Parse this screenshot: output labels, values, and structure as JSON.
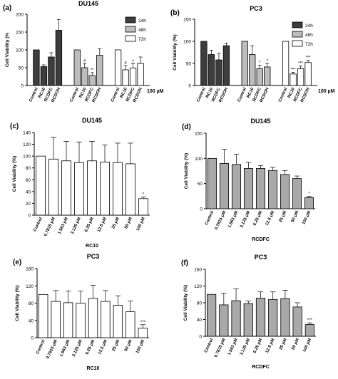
{
  "colors": {
    "bar_24h": "#3d3d3d",
    "bar_48h": "#bdbdbd",
    "bar_72h": "#ffffff",
    "bar_gray": "#a9a9a9",
    "bar_white": "#ffffff",
    "axis": "#000000"
  },
  "chart_data": [
    {
      "panel": "(a)",
      "title": "DU145",
      "type": "bar",
      "ylabel": "Cell Viability (%",
      "ylim": [
        0,
        200
      ],
      "yticks": [
        0,
        50,
        100,
        150,
        200
      ],
      "unit_note": "100 µM",
      "legend": [
        "24h",
        "48h",
        "72h"
      ],
      "legend_position": "top-right",
      "groups": [
        {
          "name": "24h",
          "categories": [
            "Control",
            "RC10",
            "RCDFC",
            "RCDOH"
          ],
          "values": [
            100,
            53,
            80,
            155
          ],
          "errors": [
            0,
            5,
            12,
            30
          ],
          "sig": [
            "",
            "",
            "",
            ""
          ]
        },
        {
          "name": "48h",
          "categories": [
            "Control",
            "RC10",
            "RCDFC",
            "RCDOH"
          ],
          "values": [
            100,
            50,
            28,
            85
          ],
          "errors": [
            0,
            12,
            8,
            18
          ],
          "sig": [
            "",
            "#",
            "**",
            ""
          ]
        },
        {
          "name": "72h",
          "categories": [
            "Control",
            "RC10",
            "RCDFC",
            "RCDOH"
          ],
          "values": [
            100,
            44,
            49,
            62
          ],
          "errors": [
            0,
            12,
            12,
            18
          ],
          "sig": [
            "",
            "#",
            "†",
            ""
          ]
        }
      ]
    },
    {
      "panel": "(b)",
      "title": "PC3",
      "type": "bar",
      "ylabel": "Cell Viability (%)",
      "ylim": [
        0,
        150
      ],
      "yticks": [
        0,
        50,
        100,
        150
      ],
      "unit_note": "100 µM",
      "legend": [
        "24h",
        "48h",
        "72h"
      ],
      "legend_position": "top-right",
      "groups": [
        {
          "name": "24h",
          "categories": [
            "Control",
            "RC10",
            "RCDFC",
            "RCDOH"
          ],
          "values": [
            100,
            70,
            58,
            90
          ],
          "errors": [
            0,
            10,
            15,
            6
          ],
          "sig": [
            "",
            "",
            "",
            ""
          ]
        },
        {
          "name": "48h",
          "categories": [
            "Control",
            "RC10",
            "RCDFC",
            "RCDOH"
          ],
          "values": [
            100,
            70,
            38,
            42
          ],
          "errors": [
            0,
            20,
            8,
            8
          ],
          "sig": [
            "",
            "",
            "*",
            "*"
          ]
        },
        {
          "name": "72h",
          "categories": [
            "Control",
            "RC10",
            "RCDFC",
            "RCDOH"
          ],
          "values": [
            100,
            26,
            38,
            52
          ],
          "errors": [
            0,
            4,
            6,
            5
          ],
          "sig": [
            "",
            "***",
            "***",
            "***"
          ]
        }
      ]
    },
    {
      "panel": "(c)",
      "title": "DU145",
      "type": "bar",
      "xlabel": "RC10",
      "ylabel": "Cell Viability (%)",
      "ylim": [
        0,
        140
      ],
      "yticks": [
        0,
        20,
        40,
        60,
        80,
        100,
        120,
        140
      ],
      "fill": "white",
      "categories": [
        "Control",
        "0.7815 μM",
        "1.563 μM",
        "3.125 μM",
        "6.25 μM",
        "12.5 μM",
        "25 μM",
        "50 μM",
        "100 μM"
      ],
      "values": [
        100,
        95,
        92,
        89,
        92,
        90,
        89,
        87,
        28
      ],
      "errors": [
        0,
        37,
        33,
        35,
        33,
        29,
        33,
        35,
        3
      ],
      "sig": [
        "",
        "",
        "",
        "",
        "",
        "",
        "",
        "",
        "*"
      ]
    },
    {
      "panel": "(d)",
      "title": "DU145",
      "type": "bar",
      "xlabel": "RCDFC",
      "ylabel": "Cell Viability (%)",
      "ylim": [
        0,
        150
      ],
      "yticks": [
        0,
        50,
        100,
        150
      ],
      "fill": "gray",
      "categories": [
        "Control",
        "0.7815 μM",
        "1.563 μM",
        "3.125 μM",
        "6.25 μM",
        "12.5 μM",
        "25 μM",
        "50 μM",
        "100 μM"
      ],
      "values": [
        100,
        90,
        88,
        80,
        80,
        76,
        68,
        60,
        22
      ],
      "errors": [
        0,
        28,
        20,
        12,
        6,
        6,
        8,
        5,
        3
      ],
      "sig": [
        "",
        "",
        "",
        "",
        "",
        "",
        "",
        "",
        "*"
      ]
    },
    {
      "panel": "(e)",
      "title": "PC3",
      "type": "bar",
      "xlabel": "RC10",
      "ylabel": "Cell Viability (%)",
      "ylim": [
        0,
        160
      ],
      "yticks": [
        0,
        40,
        80,
        120,
        160
      ],
      "fill": "white",
      "categories": [
        "Control",
        "0.7815 μM",
        "1.563 μM",
        "3.125 μM",
        "6.25 μM",
        "12.5 μM",
        "25 μM",
        "50 μM",
        "100 μM"
      ],
      "values": [
        100,
        84,
        81,
        80,
        91,
        84,
        75,
        60,
        22
      ],
      "errors": [
        0,
        25,
        27,
        28,
        30,
        25,
        22,
        25,
        8
      ],
      "sig": [
        "",
        "",
        "",
        "",
        "",
        "",
        "",
        "",
        "***"
      ]
    },
    {
      "panel": "(f)",
      "title": "PC3",
      "type": "bar",
      "xlabel": "RCDFC",
      "ylabel": "Cell Viability (%)",
      "ylim": [
        0,
        160
      ],
      "yticks": [
        0,
        40,
        80,
        120,
        160
      ],
      "fill": "gray",
      "categories": [
        "Control",
        "0.7815 μM",
        "1.563 μM",
        "3.125 μM",
        "6.25 μM",
        "12.5 μM",
        "25 μM",
        "50 μM",
        "100 μM"
      ],
      "values": [
        100,
        75,
        85,
        78,
        91,
        88,
        90,
        70,
        28
      ],
      "errors": [
        0,
        28,
        28,
        6,
        15,
        18,
        20,
        10,
        4
      ],
      "sig": [
        "",
        "",
        "",
        "",
        "",
        "",
        "",
        "",
        "***"
      ]
    }
  ]
}
